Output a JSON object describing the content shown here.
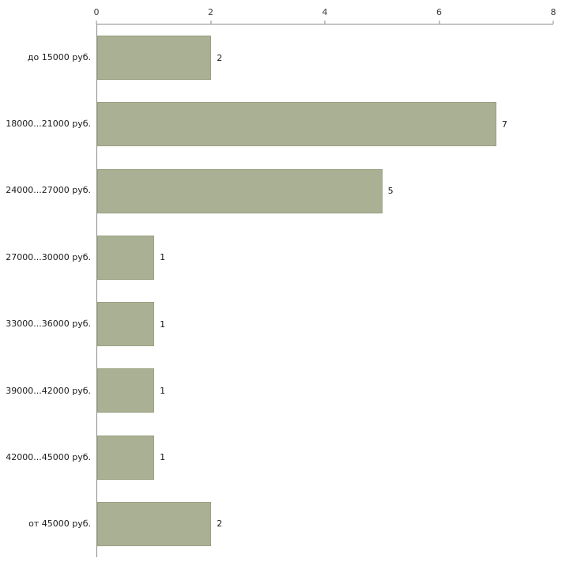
{
  "chart_data": {
    "type": "bar",
    "orientation": "horizontal",
    "title": "",
    "xlabel": "",
    "ylabel": "",
    "categories": [
      "до 15000 руб.",
      "18000...21000 руб.",
      "24000...27000 руб.",
      "27000...30000 руб.",
      "33000...36000 руб.",
      "39000...42000 руб.",
      "42000...45000 руб.",
      "от 45000 руб."
    ],
    "values": [
      2,
      7,
      5,
      1,
      1,
      1,
      1,
      2
    ],
    "x_ticks": [
      "0",
      "2",
      "4",
      "6",
      "8"
    ],
    "x_tick_values": [
      0,
      2,
      4,
      6,
      8
    ],
    "xlim": [
      0,
      8
    ],
    "grid": "off",
    "legend": "none",
    "bar_color": "#a9b093",
    "bar_border_color": "#99a182",
    "axis_color": "#8a8a8a",
    "label_color": "#1a1a1a"
  }
}
